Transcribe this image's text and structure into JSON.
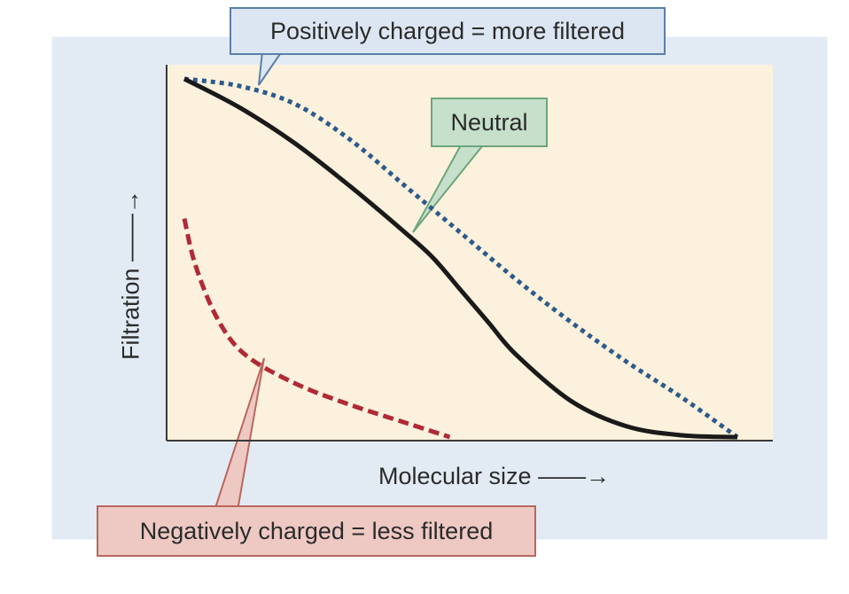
{
  "chart_data": {
    "type": "line",
    "xlabel": "Molecular size",
    "ylabel": "Filtration",
    "x_ticks_shown": false,
    "y_ticks_shown": false,
    "xlim": [
      0,
      100
    ],
    "ylim": [
      0,
      100
    ],
    "grid": false,
    "series": [
      {
        "name": "Positively charged",
        "style": "dotted",
        "color": "#2d5a8a",
        "points": [
          [
            0,
            100
          ],
          [
            10,
            98
          ],
          [
            20,
            93
          ],
          [
            30,
            83
          ],
          [
            40,
            70
          ],
          [
            50,
            57
          ],
          [
            60,
            44
          ],
          [
            70,
            32
          ],
          [
            80,
            21
          ],
          [
            90,
            11
          ],
          [
            100,
            0
          ]
        ]
      },
      {
        "name": "Neutral",
        "style": "solid",
        "color": "#1a1a1a",
        "points": [
          [
            0,
            100
          ],
          [
            10,
            92
          ],
          [
            20,
            82
          ],
          [
            30,
            70
          ],
          [
            40,
            57
          ],
          [
            45,
            50
          ],
          [
            50,
            41
          ],
          [
            55,
            32
          ],
          [
            60,
            23
          ],
          [
            70,
            10
          ],
          [
            80,
            3
          ],
          [
            90,
            0.5
          ],
          [
            100,
            0
          ]
        ]
      },
      {
        "name": "Negatively charged",
        "style": "dashed",
        "color": "#b02a36",
        "points": [
          [
            0,
            61
          ],
          [
            2,
            48
          ],
          [
            6,
            33
          ],
          [
            11,
            23
          ],
          [
            20,
            15
          ],
          [
            30,
            9
          ],
          [
            40,
            4
          ],
          [
            48,
            0
          ]
        ]
      }
    ],
    "annotations": [
      {
        "id": "positive",
        "text": "Positively charged = more filtered"
      },
      {
        "id": "neutral",
        "text": "Neutral"
      },
      {
        "id": "negative",
        "text": "Negatively charged = less filtered"
      }
    ]
  },
  "colors": {
    "outer_panel": "#e2ebf4",
    "plot_area": "#fbf1dc",
    "positive_box": "#dce6f2",
    "neutral_box": "#c6e0cc",
    "negative_box": "#eec8c2"
  }
}
